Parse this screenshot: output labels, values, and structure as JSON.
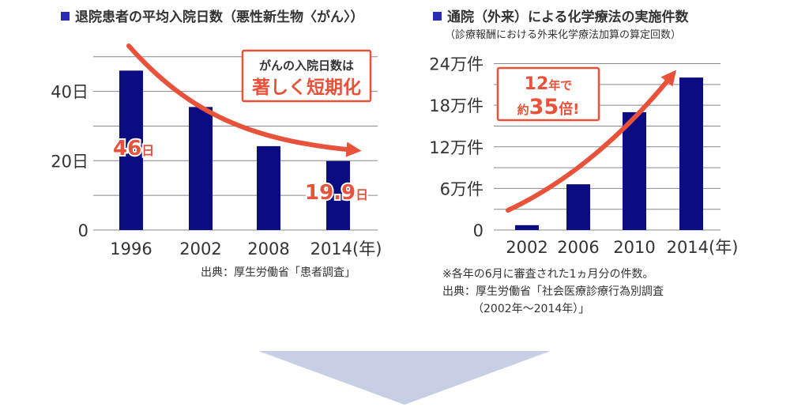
{
  "colors": {
    "bar": "#0b0b82",
    "accent": "#e8513a",
    "title_square": "#2a2ab8",
    "grid": "#888888",
    "arrow_down": "#c6cfe3"
  },
  "chart_data": [
    {
      "type": "bar",
      "title": "退院患者の平均入院日数（悪性新生物〈がん〉）",
      "categories": [
        "1996",
        "2002",
        "2008",
        "2014(年)"
      ],
      "values": [
        46,
        35.5,
        24.2,
        19.9
      ],
      "ylim": [
        0,
        52
      ],
      "yticks": [
        0,
        20,
        40
      ],
      "ytick_labels": [
        "0",
        "20日",
        "40日"
      ],
      "gridlines": [
        0,
        10,
        20,
        30,
        40,
        50
      ],
      "data_labels": [
        {
          "index": 0,
          "value": "46",
          "unit": "日"
        },
        {
          "index": 3,
          "value": "19.9",
          "unit": "日"
        }
      ],
      "annotation": {
        "line1": "がんの入院日数は",
        "line2": "著しく短期化"
      },
      "source": "出典：厚生労働省「患者調査」"
    },
    {
      "type": "bar",
      "title": "通院（外来）による化学療法の実施件数",
      "subtitle": "（診療報酬における外来化学療法加算の算定回数）",
      "categories": [
        "2002",
        "2006",
        "2010",
        "2014(年)"
      ],
      "values": [
        7000,
        66000,
        170000,
        220000
      ],
      "ylim": [
        0,
        260000
      ],
      "yticks": [
        0,
        60000,
        120000,
        180000,
        240000
      ],
      "ytick_labels": [
        "0",
        "6万件",
        "12万件",
        "18万件",
        "24万件"
      ],
      "gridlines": [
        0,
        30000,
        60000,
        90000,
        120000,
        150000,
        180000,
        210000,
        240000
      ],
      "annotation": {
        "line1_num": "12",
        "line1_unit": "年で",
        "line2_pre": "約",
        "line2_num": "35",
        "line2_post": "倍!"
      },
      "note": "※各年の6月に審査された1ヵ月分の件数。",
      "source_line1": "出典：厚生労働省「社会医療診療行為別調査",
      "source_line2": "（2002年〜2014年）」"
    }
  ]
}
